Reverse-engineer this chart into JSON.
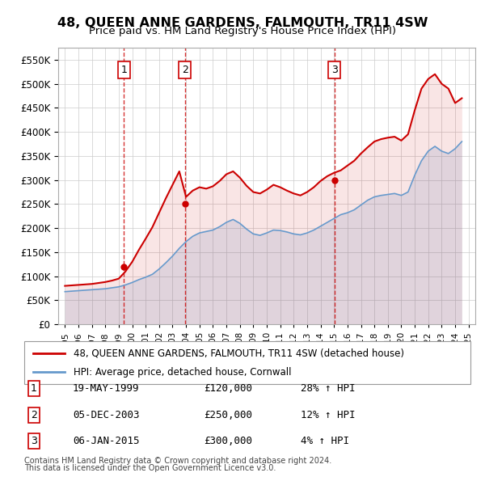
{
  "title": "48, QUEEN ANNE GARDENS, FALMOUTH, TR11 4SW",
  "subtitle": "Price paid vs. HM Land Registry's House Price Index (HPI)",
  "legend_line1": "48, QUEEN ANNE GARDENS, FALMOUTH, TR11 4SW (detached house)",
  "legend_line2": "HPI: Average price, detached house, Cornwall",
  "footnote1": "Contains HM Land Registry data © Crown copyright and database right 2024.",
  "footnote2": "This data is licensed under the Open Government Licence v3.0.",
  "transactions": [
    {
      "num": 1,
      "date": "19-MAY-1999",
      "price": 120000,
      "hpi_change": "28% ↑ HPI",
      "year": 1999.38
    },
    {
      "num": 2,
      "date": "05-DEC-2003",
      "price": 250000,
      "hpi_change": "12% ↑ HPI",
      "year": 2003.92
    },
    {
      "num": 3,
      "date": "06-JAN-2015",
      "price": 300000,
      "hpi_change": "4% ↑ HPI",
      "year": 2015.02
    }
  ],
  "ylim": [
    0,
    575000
  ],
  "yticks": [
    0,
    50000,
    100000,
    150000,
    200000,
    250000,
    300000,
    350000,
    400000,
    450000,
    500000,
    550000
  ],
  "red_color": "#cc0000",
  "blue_color": "#6699cc",
  "hpi_years": [
    1995,
    1995.5,
    1996,
    1996.5,
    1997,
    1997.5,
    1998,
    1998.5,
    1999,
    1999.5,
    2000,
    2000.5,
    2001,
    2001.5,
    2002,
    2002.5,
    2003,
    2003.5,
    2004,
    2004.5,
    2005,
    2005.5,
    2006,
    2006.5,
    2007,
    2007.5,
    2008,
    2008.5,
    2009,
    2009.5,
    2010,
    2010.5,
    2011,
    2011.5,
    2012,
    2012.5,
    2013,
    2013.5,
    2014,
    2014.5,
    2015,
    2015.5,
    2016,
    2016.5,
    2017,
    2017.5,
    2018,
    2018.5,
    2019,
    2019.5,
    2020,
    2020.5,
    2021,
    2021.5,
    2022,
    2022.5,
    2023,
    2023.5,
    2024,
    2024.5
  ],
  "hpi_values": [
    68000,
    69000,
    70000,
    71000,
    72000,
    73000,
    74000,
    76000,
    78000,
    82000,
    87000,
    93000,
    98000,
    104000,
    115000,
    128000,
    142000,
    158000,
    172000,
    183000,
    190000,
    193000,
    196000,
    203000,
    212000,
    218000,
    210000,
    198000,
    188000,
    185000,
    190000,
    196000,
    195000,
    192000,
    188000,
    186000,
    190000,
    196000,
    204000,
    212000,
    220000,
    228000,
    232000,
    238000,
    248000,
    258000,
    265000,
    268000,
    270000,
    272000,
    268000,
    275000,
    310000,
    340000,
    360000,
    370000,
    360000,
    355000,
    365000,
    380000
  ],
  "red_years": [
    1995,
    1995.5,
    1996,
    1996.5,
    1997,
    1997.5,
    1998,
    1998.5,
    1999,
    1999.5,
    2000,
    2000.5,
    2001,
    2001.5,
    2002,
    2002.5,
    2003,
    2003.5,
    2004,
    2004.5,
    2005,
    2005.5,
    2006,
    2006.5,
    2007,
    2007.5,
    2008,
    2008.5,
    2009,
    2009.5,
    2010,
    2010.5,
    2011,
    2011.5,
    2012,
    2012.5,
    2013,
    2013.5,
    2014,
    2014.5,
    2015,
    2015.5,
    2016,
    2016.5,
    2017,
    2017.5,
    2018,
    2018.5,
    2019,
    2019.5,
    2020,
    2020.5,
    2021,
    2021.5,
    2022,
    2022.5,
    2023,
    2023.5,
    2024,
    2024.5
  ],
  "red_values": [
    80000,
    81000,
    82000,
    83000,
    84000,
    86000,
    88000,
    91000,
    95000,
    110000,
    130000,
    155000,
    178000,
    202000,
    232000,
    262000,
    290000,
    318000,
    265000,
    278000,
    285000,
    282000,
    287000,
    298000,
    312000,
    318000,
    305000,
    288000,
    275000,
    272000,
    280000,
    290000,
    285000,
    278000,
    272000,
    268000,
    275000,
    285000,
    298000,
    308000,
    315000,
    320000,
    330000,
    340000,
    355000,
    368000,
    380000,
    385000,
    388000,
    390000,
    382000,
    395000,
    445000,
    490000,
    510000,
    520000,
    500000,
    490000,
    460000,
    470000
  ],
  "xlim_left": 1994.5,
  "xlim_right": 2025.5
}
